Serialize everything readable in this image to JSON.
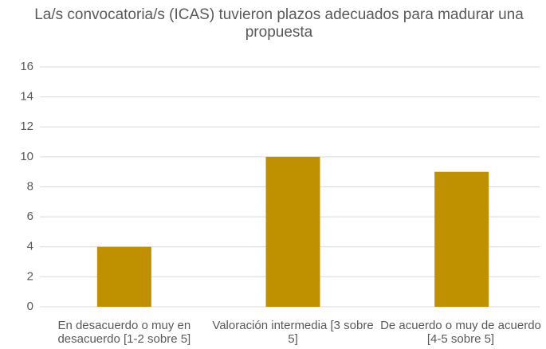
{
  "chart_data": {
    "type": "bar",
    "title": "La/s convocatoria/s (ICAS) tuvieron plazos adecuados para madurar una propuesta",
    "categories": [
      "En desacuerdo o muy en desacuerdo [1-2 sobre 5]",
      "Valoración intermedia [3 sobre 5]",
      "De acuerdo o muy de acuerdo [4-5 sobre 5]"
    ],
    "values": [
      4,
      10,
      9
    ],
    "color": "#bf9000",
    "ylim": [
      0,
      16
    ],
    "yticks": [
      0,
      2,
      4,
      6,
      8,
      10,
      12,
      14,
      16
    ],
    "grid": true
  }
}
